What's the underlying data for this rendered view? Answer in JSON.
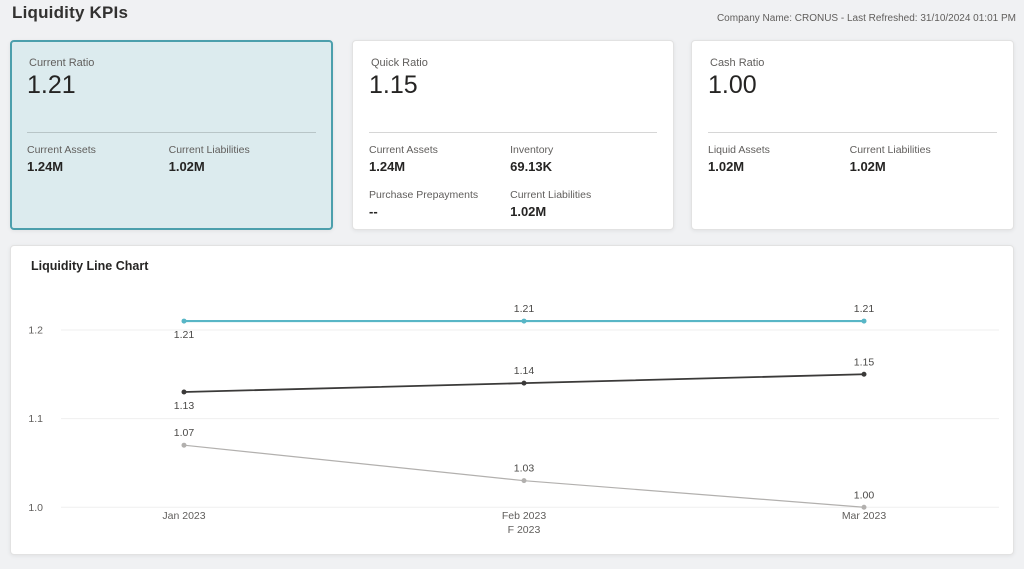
{
  "page": {
    "title": "Liquidity KPIs",
    "header_info": "Company Name: CRONUS - Last Refreshed: 31/10/2024 01:01 PM"
  },
  "colors": {
    "accent_teal": "#4c9fac",
    "selected_card_bg": "#dcebee",
    "series_current_ratio": "#58b6c6",
    "series_quick_ratio": "#3b3a39",
    "series_cash_ratio": "#b2b0ae"
  },
  "cards": [
    {
      "label": "Current Ratio",
      "value": "1.21",
      "selected": true,
      "details": [
        {
          "label": "Current Assets",
          "value": "1.24M"
        },
        {
          "label": "Current Liabilities",
          "value": "1.02M"
        }
      ]
    },
    {
      "label": "Quick Ratio",
      "value": "1.15",
      "selected": false,
      "details": [
        {
          "label": "Current Assets",
          "value": "1.24M"
        },
        {
          "label": "Inventory",
          "value": "69.13K"
        },
        {
          "label": "Purchase Prepayments",
          "value": "--"
        },
        {
          "label": "Current Liabilities",
          "value": "1.02M"
        }
      ]
    },
    {
      "label": "Cash Ratio",
      "value": "1.00",
      "selected": false,
      "details": [
        {
          "label": "Liquid Assets",
          "value": "1.02M"
        },
        {
          "label": "Current Liabilities",
          "value": "1.02M"
        }
      ]
    }
  ],
  "chart_data": {
    "type": "line",
    "title": "Liquidity Line Chart",
    "x": [
      "Jan 2023",
      "Feb 2023",
      "Mar 2023"
    ],
    "x_axis_title": "F 2023",
    "series": [
      {
        "name": "Current Ratio",
        "values": [
          1.21,
          1.21,
          1.21
        ],
        "color": "#58b6c6",
        "width": 2.2,
        "label_side": [
          "below",
          "above",
          "above"
        ]
      },
      {
        "name": "Quick Ratio",
        "values": [
          1.13,
          1.14,
          1.15
        ],
        "color": "#3b3a39",
        "width": 1.8,
        "label_side": [
          "below",
          "above",
          "above"
        ]
      },
      {
        "name": "Cash Ratio",
        "values": [
          1.07,
          1.03,
          1.0
        ],
        "color": "#b2b0ae",
        "width": 1.2,
        "label_side": [
          "above",
          "above",
          "above"
        ]
      }
    ],
    "y_ticks": [
      1.0,
      1.1,
      1.2
    ],
    "ylim": [
      0.98,
      1.227
    ],
    "grid": true,
    "legend": false,
    "data_labels": true
  }
}
